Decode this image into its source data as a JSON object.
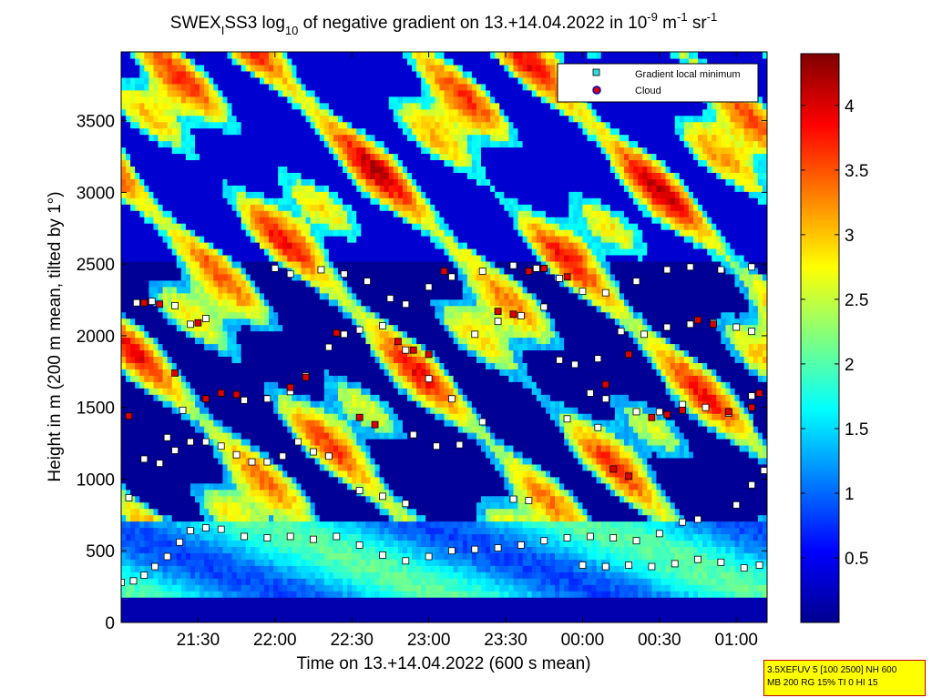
{
  "chart_data": {
    "type": "heatmap",
    "title": {
      "prefix": "SWEX",
      "sub1": "I",
      "mid": "SS3 log",
      "sub2": "10",
      "mid2": " of negative gradient on 13.+14.04.2022 in 10",
      "sup1": "-9",
      "mid3": " m",
      "sup2": "-1",
      "mid4": " sr",
      "sup3": "-1"
    },
    "xlabel": "Time on 13.+14.04.2022 (600 s mean)",
    "ylabel": "Height in m (200 m mean, tilted by 1°)",
    "xlim_hours": [
      21.0,
      25.2
    ],
    "ylim": [
      0,
      3980
    ],
    "x_ticks": [
      {
        "value": 21.5,
        "label": "21:30"
      },
      {
        "value": 22.0,
        "label": "22:00"
      },
      {
        "value": 22.5,
        "label": "22:30"
      },
      {
        "value": 23.0,
        "label": "23:00"
      },
      {
        "value": 23.5,
        "label": "23:30"
      },
      {
        "value": 24.0,
        "label": "00:00"
      },
      {
        "value": 24.5,
        "label": "00:30"
      },
      {
        "value": 25.0,
        "label": "01:00"
      }
    ],
    "y_ticks": [
      0,
      500,
      1000,
      1500,
      2000,
      2500,
      3000,
      3500
    ],
    "colorbar": {
      "range": [
        0,
        4.4
      ],
      "ticks": [
        0.5,
        1,
        1.5,
        2,
        2.5,
        3,
        3.5,
        4
      ],
      "tick_labels": [
        "0.5",
        "1",
        "1.5",
        "2",
        "2.5",
        "3",
        "3.5",
        "4"
      ],
      "colormap": "jet"
    },
    "legend": {
      "position": "top-right",
      "entries": [
        "Gradient local minimum",
        "Cloud"
      ]
    },
    "series": [
      {
        "name": "Gradient local minimum",
        "marker": "square",
        "points": [
          [
            21.0,
            280
          ],
          [
            21.08,
            290
          ],
          [
            21.15,
            330
          ],
          [
            21.22,
            390
          ],
          [
            21.3,
            460
          ],
          [
            21.38,
            560
          ],
          [
            21.45,
            640
          ],
          [
            21.55,
            660
          ],
          [
            21.65,
            650
          ],
          [
            21.8,
            600
          ],
          [
            21.95,
            590
          ],
          [
            22.1,
            600
          ],
          [
            22.25,
            580
          ],
          [
            22.4,
            600
          ],
          [
            22.55,
            540
          ],
          [
            22.7,
            470
          ],
          [
            22.85,
            430
          ],
          [
            23.0,
            460
          ],
          [
            23.15,
            500
          ],
          [
            23.3,
            510
          ],
          [
            23.45,
            520
          ],
          [
            23.6,
            540
          ],
          [
            23.75,
            570
          ],
          [
            23.9,
            590
          ],
          [
            24.05,
            600
          ],
          [
            24.2,
            590
          ],
          [
            24.35,
            570
          ],
          [
            24.5,
            620
          ],
          [
            24.65,
            700
          ],
          [
            24.75,
            720
          ],
          [
            24.0,
            400
          ],
          [
            24.15,
            390
          ],
          [
            24.3,
            400
          ],
          [
            24.45,
            390
          ],
          [
            24.6,
            410
          ],
          [
            24.75,
            440
          ],
          [
            24.9,
            420
          ],
          [
            25.05,
            380
          ],
          [
            25.15,
            400
          ],
          [
            21.05,
            870
          ],
          [
            21.15,
            1140
          ],
          [
            21.25,
            1110
          ],
          [
            21.35,
            1200
          ],
          [
            21.45,
            1260
          ],
          [
            21.55,
            1260
          ],
          [
            21.65,
            1230
          ],
          [
            21.75,
            1170
          ],
          [
            21.85,
            1120
          ],
          [
            21.95,
            1120
          ],
          [
            22.05,
            1160
          ],
          [
            22.15,
            1260
          ],
          [
            22.25,
            1190
          ],
          [
            22.35,
            1160
          ],
          [
            22.55,
            920
          ],
          [
            22.7,
            880
          ],
          [
            22.85,
            830
          ],
          [
            23.55,
            860
          ],
          [
            23.65,
            850
          ],
          [
            25.0,
            820
          ],
          [
            25.1,
            960
          ],
          [
            25.18,
            1060
          ],
          [
            21.3,
            1290
          ],
          [
            21.4,
            1480
          ],
          [
            21.55,
            1560
          ],
          [
            21.65,
            1600
          ],
          [
            21.8,
            1550
          ],
          [
            21.95,
            1560
          ],
          [
            22.1,
            1610
          ],
          [
            22.2,
            1720
          ],
          [
            22.35,
            1920
          ],
          [
            22.45,
            2010
          ],
          [
            22.55,
            2040
          ],
          [
            22.7,
            2070
          ],
          [
            22.85,
            1900
          ],
          [
            23.0,
            1700
          ],
          [
            23.15,
            1560
          ],
          [
            23.3,
            2010
          ],
          [
            23.45,
            2100
          ],
          [
            23.6,
            2140
          ],
          [
            23.75,
            2200
          ],
          [
            23.85,
            1830
          ],
          [
            23.95,
            1800
          ],
          [
            24.1,
            1840
          ],
          [
            24.25,
            2030
          ],
          [
            24.4,
            2010
          ],
          [
            24.55,
            2060
          ],
          [
            24.7,
            2080
          ],
          [
            24.85,
            2090
          ],
          [
            25.0,
            2060
          ],
          [
            25.1,
            2030
          ],
          [
            21.1,
            2230
          ],
          [
            21.2,
            2240
          ],
          [
            21.35,
            2210
          ],
          [
            21.45,
            2080
          ],
          [
            21.55,
            2120
          ],
          [
            22.0,
            2470
          ],
          [
            22.1,
            2430
          ],
          [
            22.3,
            2460
          ],
          [
            22.45,
            2430
          ],
          [
            22.6,
            2380
          ],
          [
            22.75,
            2260
          ],
          [
            22.85,
            2220
          ],
          [
            23.0,
            2340
          ],
          [
            23.15,
            2410
          ],
          [
            23.35,
            2450
          ],
          [
            23.55,
            2490
          ],
          [
            23.7,
            2470
          ],
          [
            23.85,
            2400
          ],
          [
            24.0,
            2310
          ],
          [
            24.15,
            2300
          ],
          [
            24.35,
            2380
          ],
          [
            24.55,
            2460
          ],
          [
            24.7,
            2480
          ],
          [
            24.9,
            2460
          ],
          [
            25.1,
            2480
          ],
          [
            24.05,
            1600
          ],
          [
            24.15,
            1560
          ],
          [
            24.35,
            1470
          ],
          [
            24.5,
            1470
          ],
          [
            24.65,
            1520
          ],
          [
            24.8,
            1500
          ],
          [
            24.95,
            1460
          ],
          [
            25.1,
            1580
          ],
          [
            22.9,
            1310
          ],
          [
            23.05,
            1230
          ],
          [
            23.2,
            1240
          ],
          [
            23.35,
            1400
          ],
          [
            23.9,
            1420
          ],
          [
            24.1,
            1360
          ]
        ]
      },
      {
        "name": "Cloud",
        "marker": "circle",
        "points": [
          [
            21.05,
            1440
          ],
          [
            21.15,
            2230
          ],
          [
            21.25,
            2220
          ],
          [
            21.35,
            1740
          ],
          [
            21.5,
            2090
          ],
          [
            21.55,
            1560
          ],
          [
            21.65,
            1600
          ],
          [
            21.75,
            1590
          ],
          [
            22.1,
            1640
          ],
          [
            22.2,
            1710
          ],
          [
            22.4,
            2020
          ],
          [
            22.55,
            1430
          ],
          [
            22.65,
            1380
          ],
          [
            22.8,
            1960
          ],
          [
            22.9,
            1900
          ],
          [
            23.0,
            1870
          ],
          [
            23.1,
            2450
          ],
          [
            23.45,
            2170
          ],
          [
            23.55,
            2150
          ],
          [
            23.65,
            2450
          ],
          [
            23.75,
            2470
          ],
          [
            23.9,
            2410
          ],
          [
            24.15,
            1660
          ],
          [
            24.3,
            1870
          ],
          [
            24.45,
            1430
          ],
          [
            24.55,
            1450
          ],
          [
            24.65,
            1480
          ],
          [
            24.75,
            2110
          ],
          [
            24.85,
            2080
          ],
          [
            24.95,
            1470
          ],
          [
            25.1,
            1500
          ],
          [
            25.15,
            1600
          ],
          [
            24.2,
            1070
          ],
          [
            24.3,
            1020
          ]
        ]
      }
    ]
  },
  "info_box": {
    "line1": "3.5XEFUV 5 [100 2500] NH 600",
    "line2": "MB 200 RG 15% TI 0 HI 15"
  },
  "colors": {
    "marker_fill": "#ffffff",
    "cloud_fill": "#dd0000",
    "background": "#00008f",
    "info_box_bg": "#ffff00",
    "info_box_border": "#c00000"
  }
}
